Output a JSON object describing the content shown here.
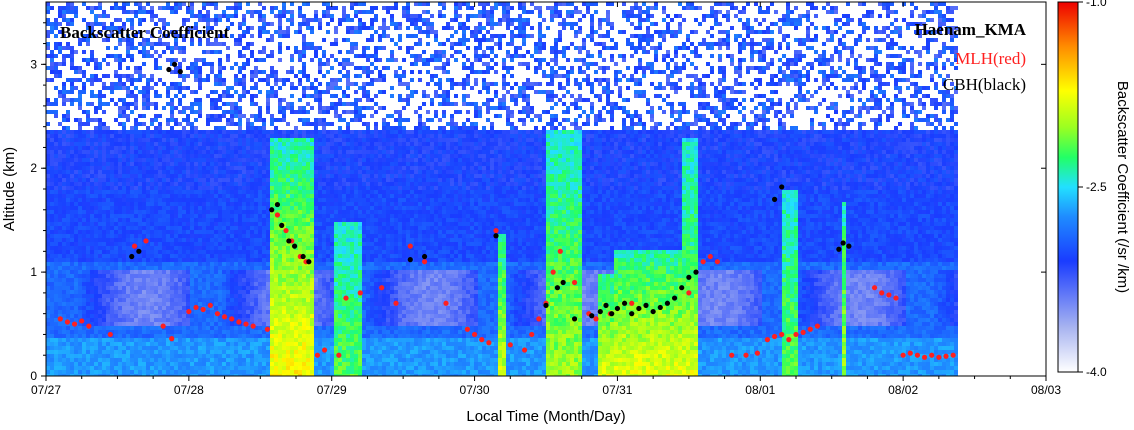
{
  "chart_data": {
    "type": "heatmap",
    "title": "Backscatter Coefficient",
    "station": "Haenam_KMA",
    "legend_mlh": "MLH(red)",
    "legend_cbh": "CBH(black)",
    "xlabel": "Local Time (Month/Day)",
    "ylabel": "Altitude (km)",
    "colorbar_label": "Backscatter Coefficient (/sr /km)",
    "x_ticks": [
      "07/27",
      "07/28",
      "07/29",
      "07/30",
      "07/31",
      "08/01",
      "08/02",
      "08/03"
    ],
    "x_range_days": [
      0,
      7
    ],
    "data_end_day": 6.38,
    "y_ticks": [
      "0",
      "1",
      "2",
      "3"
    ],
    "y_range_km": [
      0,
      3.6
    ],
    "colorbar_ticks": [
      "-1.0",
      "-2.5",
      "-4.0"
    ],
    "colorbar_range": [
      -4.0,
      -1.0
    ],
    "mlh_color": "#ff2020",
    "cbh_color": "#000000",
    "mlh_points": [
      [
        0.1,
        0.55
      ],
      [
        0.15,
        0.52
      ],
      [
        0.2,
        0.5
      ],
      [
        0.25,
        0.53
      ],
      [
        0.3,
        0.48
      ],
      [
        0.45,
        0.4
      ],
      [
        0.62,
        1.25
      ],
      [
        0.7,
        1.3
      ],
      [
        0.82,
        0.48
      ],
      [
        0.88,
        0.36
      ],
      [
        1.0,
        0.62
      ],
      [
        1.05,
        0.66
      ],
      [
        1.1,
        0.64
      ],
      [
        1.15,
        0.68
      ],
      [
        1.2,
        0.6
      ],
      [
        1.25,
        0.57
      ],
      [
        1.3,
        0.55
      ],
      [
        1.35,
        0.52
      ],
      [
        1.4,
        0.5
      ],
      [
        1.45,
        0.48
      ],
      [
        1.55,
        0.45
      ],
      [
        1.62,
        1.55
      ],
      [
        1.68,
        1.4
      ],
      [
        1.72,
        1.3
      ],
      [
        1.78,
        1.15
      ],
      [
        1.82,
        1.1
      ],
      [
        1.9,
        0.2
      ],
      [
        1.95,
        0.25
      ],
      [
        2.05,
        0.2
      ],
      [
        2.1,
        0.75
      ],
      [
        2.2,
        0.8
      ],
      [
        2.35,
        0.85
      ],
      [
        2.45,
        0.7
      ],
      [
        2.55,
        1.25
      ],
      [
        2.65,
        1.1
      ],
      [
        2.8,
        0.7
      ],
      [
        2.95,
        0.45
      ],
      [
        3.0,
        0.4
      ],
      [
        3.05,
        0.35
      ],
      [
        3.1,
        0.32
      ],
      [
        3.15,
        1.4
      ],
      [
        3.25,
        0.3
      ],
      [
        3.35,
        0.25
      ],
      [
        3.4,
        0.4
      ],
      [
        3.45,
        0.55
      ],
      [
        3.5,
        0.7
      ],
      [
        3.55,
        1.0
      ],
      [
        3.6,
        1.2
      ],
      [
        3.7,
        0.9
      ],
      [
        3.8,
        0.6
      ],
      [
        3.85,
        0.55
      ],
      [
        3.95,
        0.6
      ],
      [
        4.1,
        0.7
      ],
      [
        4.5,
        0.8
      ],
      [
        4.6,
        1.1
      ],
      [
        4.65,
        1.15
      ],
      [
        4.7,
        1.1
      ],
      [
        4.8,
        0.2
      ],
      [
        4.9,
        0.2
      ],
      [
        4.98,
        0.22
      ],
      [
        5.05,
        0.35
      ],
      [
        5.1,
        0.38
      ],
      [
        5.15,
        0.4
      ],
      [
        5.2,
        0.35
      ],
      [
        5.25,
        0.4
      ],
      [
        5.3,
        0.42
      ],
      [
        5.35,
        0.45
      ],
      [
        5.4,
        0.48
      ],
      [
        5.8,
        0.85
      ],
      [
        5.85,
        0.8
      ],
      [
        5.9,
        0.78
      ],
      [
        5.95,
        0.75
      ],
      [
        6.0,
        0.2
      ],
      [
        6.05,
        0.22
      ],
      [
        6.1,
        0.2
      ],
      [
        6.15,
        0.18
      ],
      [
        6.2,
        0.2
      ],
      [
        6.25,
        0.18
      ],
      [
        6.3,
        0.19
      ],
      [
        6.35,
        0.2
      ]
    ],
    "cbh_points": [
      [
        0.6,
        1.15
      ],
      [
        0.65,
        1.2
      ],
      [
        0.86,
        2.95
      ],
      [
        0.9,
        3.0
      ],
      [
        0.94,
        2.93
      ],
      [
        1.58,
        1.6
      ],
      [
        1.62,
        1.65
      ],
      [
        1.65,
        1.45
      ],
      [
        1.7,
        1.3
      ],
      [
        1.74,
        1.25
      ],
      [
        1.8,
        1.15
      ],
      [
        1.84,
        1.1
      ],
      [
        2.55,
        1.12
      ],
      [
        2.65,
        1.15
      ],
      [
        3.15,
        1.35
      ],
      [
        3.5,
        0.68
      ],
      [
        3.58,
        0.85
      ],
      [
        3.62,
        0.9
      ],
      [
        3.7,
        0.55
      ],
      [
        3.82,
        0.58
      ],
      [
        3.88,
        0.62
      ],
      [
        3.92,
        0.68
      ],
      [
        3.96,
        0.6
      ],
      [
        4.0,
        0.65
      ],
      [
        4.05,
        0.7
      ],
      [
        4.1,
        0.6
      ],
      [
        4.15,
        0.65
      ],
      [
        4.2,
        0.68
      ],
      [
        4.25,
        0.62
      ],
      [
        4.3,
        0.66
      ],
      [
        4.35,
        0.7
      ],
      [
        4.4,
        0.75
      ],
      [
        4.45,
        0.85
      ],
      [
        4.5,
        0.95
      ],
      [
        4.55,
        1.0
      ],
      [
        5.1,
        1.7
      ],
      [
        5.15,
        1.82
      ],
      [
        5.55,
        1.22
      ],
      [
        5.58,
        1.28
      ],
      [
        5.62,
        1.25
      ]
    ]
  }
}
